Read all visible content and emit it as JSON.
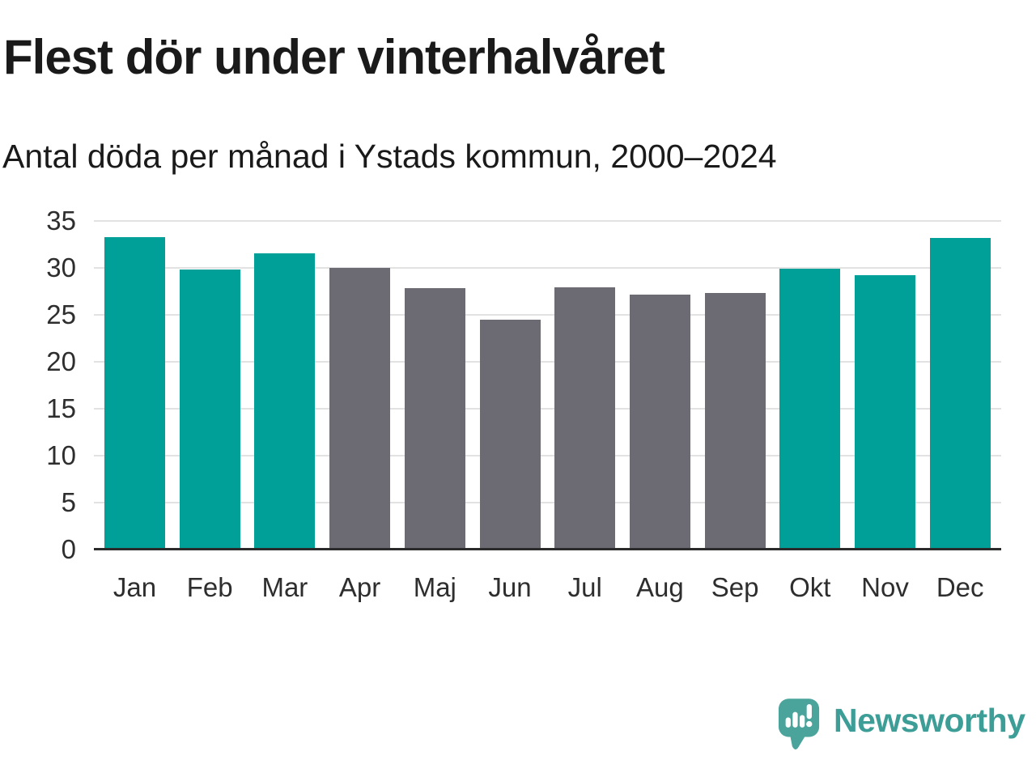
{
  "header": {
    "title": "Flest dör under vinterhalvåret",
    "subtitle": "Antal döda per månad i Ystads kommun, 2000–2024"
  },
  "chart_data": {
    "type": "bar",
    "title": "Flest dör under vinterhalvåret",
    "subtitle": "Antal döda per månad i Ystads kommun, 2000–2024",
    "categories": [
      "Jan",
      "Feb",
      "Mar",
      "Apr",
      "Maj",
      "Jun",
      "Jul",
      "Aug",
      "Sep",
      "Okt",
      "Nov",
      "Dec"
    ],
    "values": [
      33.4,
      29.9,
      31.6,
      30.1,
      27.9,
      24.6,
      28.0,
      27.2,
      27.4,
      30.0,
      29.3,
      33.3
    ],
    "bar_colors": [
      "#00A098",
      "#00A098",
      "#00A098",
      "#6C6A72",
      "#6C6A72",
      "#6C6A72",
      "#6C6A72",
      "#6C6A72",
      "#6C6A72",
      "#00A098",
      "#00A098",
      "#00A098"
    ],
    "highlighted_months": [
      "Jan",
      "Feb",
      "Mar",
      "Okt",
      "Nov",
      "Dec"
    ],
    "xlabel": "",
    "ylabel": "",
    "ylim": [
      0,
      35
    ],
    "yticks": [
      0,
      5,
      10,
      15,
      20,
      25,
      30,
      35
    ],
    "grid": "horizontal",
    "legend": "none"
  },
  "colors": {
    "highlight_teal": "#00A098",
    "muted_gray": "#6C6A72",
    "gridline": "#E2E2E2",
    "axis_line": "#2B2B2B",
    "title_text": "#1A1A1A",
    "tick_text": "#2E2E2E",
    "logo_teal": "#4AA49C",
    "logo_text_teal": "#3D9E97"
  },
  "footer": {
    "brand": "Newsworthy",
    "logo_icon": "speech-bubble-with-bar-chart-and-exclamation"
  }
}
